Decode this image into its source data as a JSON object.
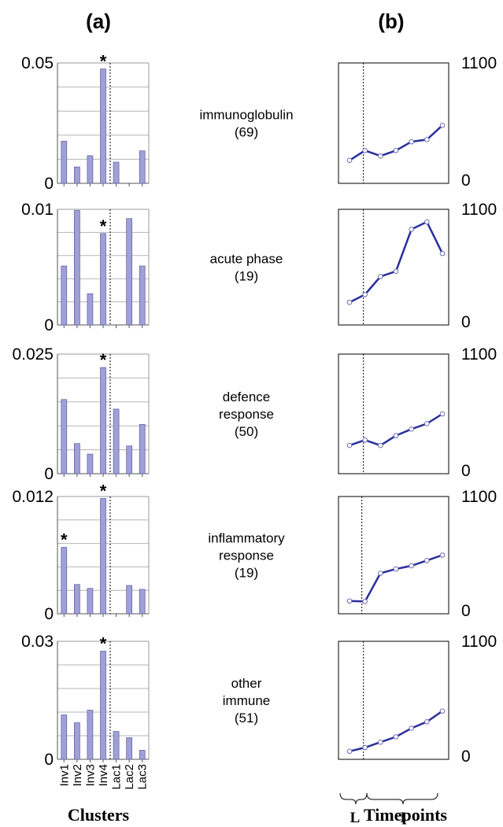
{
  "figure": {
    "panel_a_label": "(a)",
    "panel_b_label": "(b)",
    "clusters_label": "Clusters",
    "timepoints_label": "Timepoints",
    "period_labels": [
      "L",
      "I"
    ],
    "colors": {
      "bar_fill": "#9fa0d8",
      "bar_stroke": "#5a5c9c",
      "line": "#2a2f9c",
      "marker_fill": "#ffffff"
    }
  },
  "chart_data": [
    {
      "type": "bar",
      "panel": "a",
      "row": 1,
      "categories": [
        "Inv1",
        "Inv2",
        "Inv3",
        "Inv4",
        "Lac1",
        "Lac2",
        "Lac3"
      ],
      "values": [
        0.0175,
        0.0068,
        0.0115,
        0.0475,
        0.0088,
        0,
        0.0135
      ],
      "ylim": [
        0,
        0.05
      ],
      "ytick_labels": [
        "0.05",
        "0"
      ],
      "starred": [
        "Inv4"
      ],
      "grid": true
    },
    {
      "type": "line",
      "panel": "b",
      "row": 1,
      "category": "immunoglobulin",
      "count": "(69)",
      "x": [
        1,
        2,
        3,
        4,
        5,
        6,
        7
      ],
      "y": [
        210,
        300,
        250,
        300,
        380,
        400,
        530
      ],
      "ylim": [
        0,
        1100
      ],
      "ytick_labels": [
        "1100",
        "0"
      ]
    },
    {
      "type": "bar",
      "panel": "a",
      "row": 2,
      "categories": [
        "Inv1",
        "Inv2",
        "Inv3",
        "Inv4",
        "Lac1",
        "Lac2",
        "Lac3"
      ],
      "values": [
        0.0051,
        0.0099,
        0.0027,
        0.0079,
        0,
        0.0092,
        0.0051
      ],
      "ylim": [
        0,
        0.01
      ],
      "ytick_labels": [
        "0.01",
        "0"
      ],
      "starred": [
        "Inv4"
      ],
      "grid": true
    },
    {
      "type": "line",
      "panel": "b",
      "row": 2,
      "category": "acute phase",
      "count": "(19)",
      "x": [
        1,
        2,
        3,
        4,
        5,
        6,
        7
      ],
      "y": [
        215,
        290,
        460,
        510,
        910,
        980,
        680
      ],
      "ylim": [
        0,
        1100
      ],
      "ytick_labels": [
        "1100",
        "0"
      ]
    },
    {
      "type": "bar",
      "panel": "a",
      "row": 3,
      "categories": [
        "Inv1",
        "Inv2",
        "Inv3",
        "Inv4",
        "Lac1",
        "Lac2",
        "Lac3"
      ],
      "values": [
        0.0155,
        0.0063,
        0.0041,
        0.0222,
        0.0135,
        0.0058,
        0.0103
      ],
      "ylim": [
        0,
        0.025
      ],
      "ytick_labels": [
        "0.025",
        "0"
      ],
      "starred": [
        "Inv4"
      ],
      "grid": true
    },
    {
      "type": "line",
      "panel": "b",
      "row": 3,
      "category": "defence response",
      "count": "(50)",
      "x": [
        1,
        2,
        3,
        4,
        5,
        6,
        7
      ],
      "y": [
        260,
        310,
        260,
        350,
        410,
        460,
        550
      ],
      "ylim": [
        0,
        1100
      ],
      "ytick_labels": [
        "1100",
        "0"
      ]
    },
    {
      "type": "bar",
      "panel": "a",
      "row": 4,
      "categories": [
        "Inv1",
        "Inv2",
        "Inv3",
        "Inv4",
        "Lac1",
        "Lac2",
        "Lac3"
      ],
      "values": [
        0.0068,
        0.003,
        0.0026,
        0.0118,
        0,
        0.0029,
        0.0025
      ],
      "ylim": [
        0,
        0.012
      ],
      "ytick_labels": [
        "0.012",
        "0"
      ],
      "starred": [
        "Inv1",
        "Inv4"
      ],
      "grid": true
    },
    {
      "type": "line",
      "panel": "b",
      "row": 4,
      "category": "inflammatory response",
      "count": "(19)",
      "x": [
        1,
        2,
        3,
        4,
        5,
        6,
        7
      ],
      "y": [
        120,
        115,
        380,
        420,
        450,
        500,
        550
      ],
      "ylim": [
        0,
        1100
      ],
      "ytick_labels": [
        "1100",
        "0"
      ]
    },
    {
      "type": "bar",
      "panel": "a",
      "row": 5,
      "categories": [
        "Inv1",
        "Inv2",
        "Inv3",
        "Inv4",
        "Lac1",
        "Lac2",
        "Lac3"
      ],
      "values": [
        0.0113,
        0.0093,
        0.0125,
        0.0275,
        0.0071,
        0.0055,
        0.0023
      ],
      "ylim": [
        0,
        0.03
      ],
      "ytick_labels": [
        "0.03",
        "0"
      ],
      "starred": [
        "Inv4"
      ],
      "grid": true
    },
    {
      "type": "line",
      "panel": "b",
      "row": 5,
      "category": "other immune",
      "count": "(51)",
      "x": [
        1,
        2,
        3,
        4,
        5,
        6,
        7
      ],
      "y": [
        75,
        110,
        160,
        210,
        290,
        350,
        450
      ],
      "ylim": [
        0,
        1100
      ],
      "ytick_labels": [
        "1100",
        "0"
      ]
    }
  ]
}
